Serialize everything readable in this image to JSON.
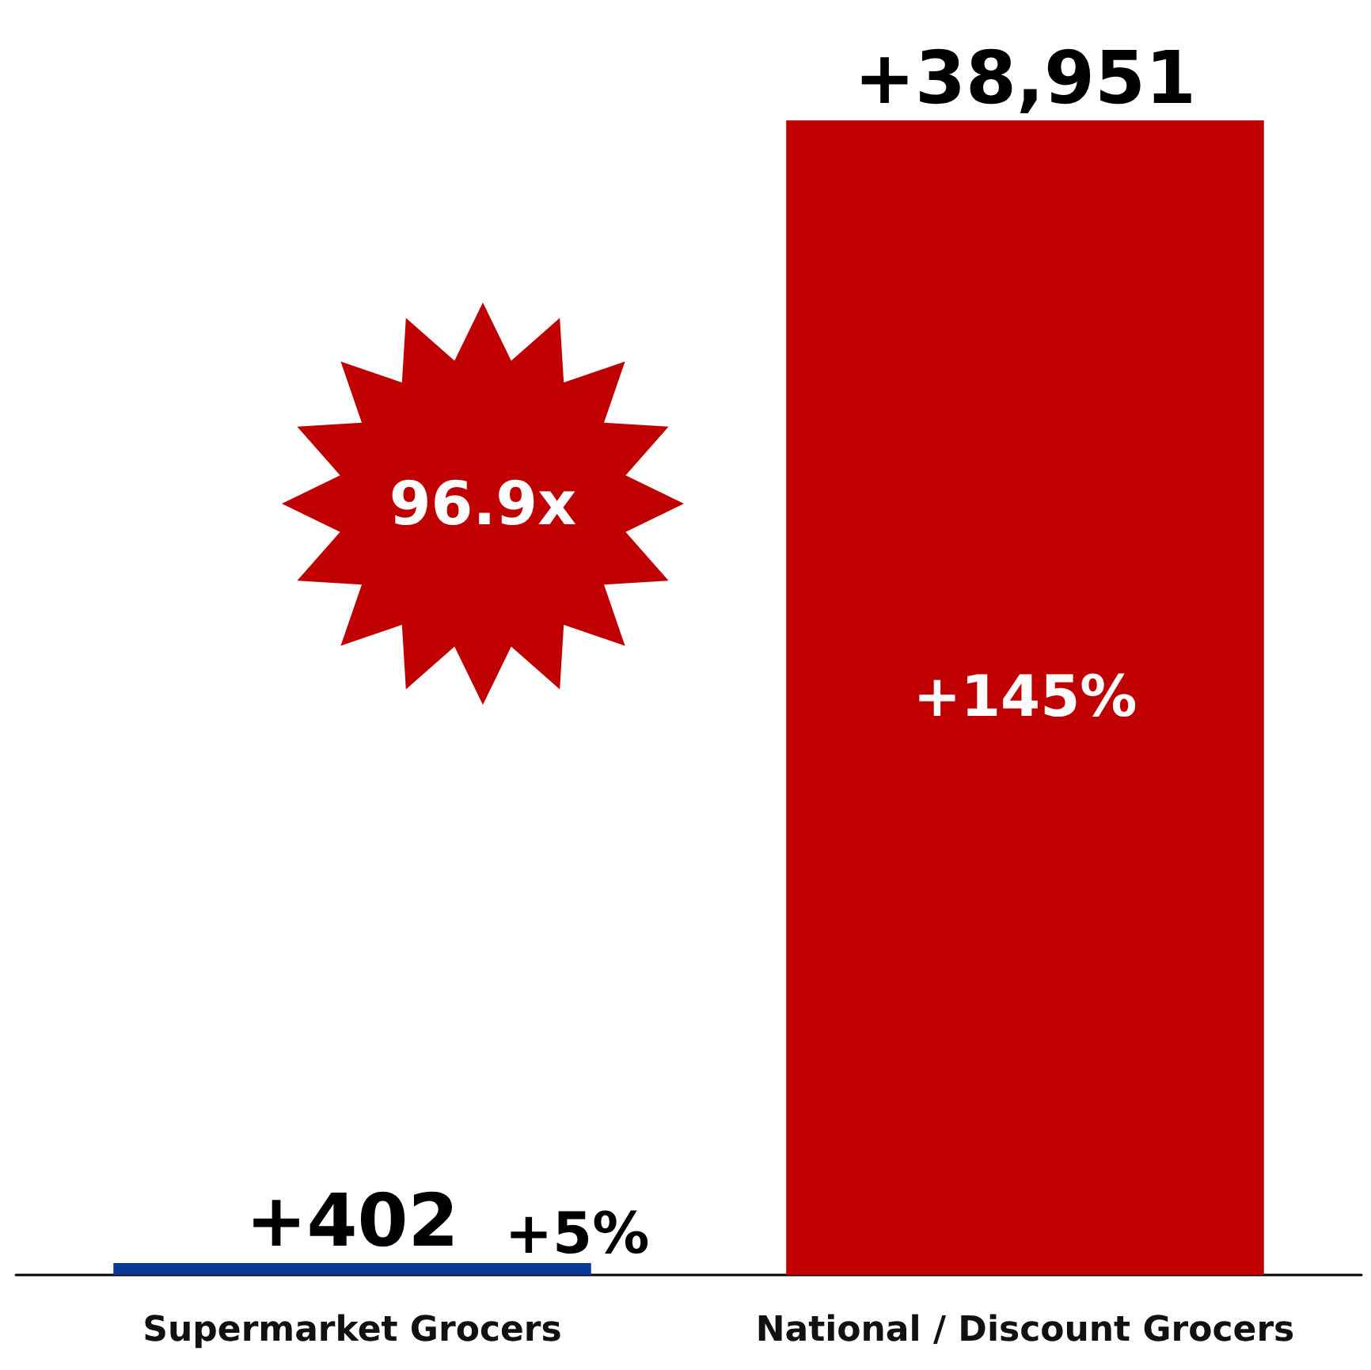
{
  "chart_data": {
    "type": "bar",
    "categories": [
      "Supermarket Grocers",
      "National / Discount Grocers"
    ],
    "values": [
      402,
      38951
    ],
    "colors": [
      "#0a3a96",
      "#c00000"
    ],
    "value_labels": [
      "+402",
      "+38,951"
    ],
    "annotations": [
      "+5%",
      "+145%",
      "96.9x"
    ]
  }
}
